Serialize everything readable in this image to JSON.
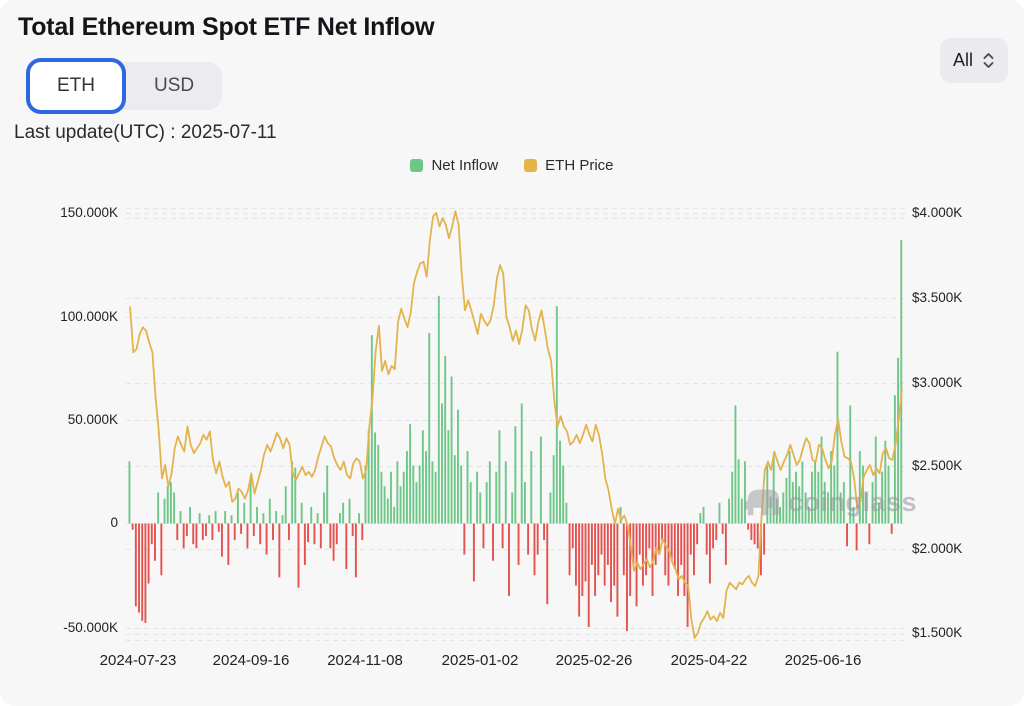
{
  "header": {
    "title": "Total Ethereum Spot ETF Net Inflow",
    "toggle": {
      "options": [
        "ETH",
        "USD"
      ],
      "selected": "ETH"
    },
    "range": {
      "value": "All"
    },
    "last_update": "Last update(UTC) : 2025-07-11"
  },
  "legend": [
    {
      "label": "Net Inflow",
      "color": "#6fc787"
    },
    {
      "label": "ETH Price",
      "color": "#e3b34c"
    }
  ],
  "watermark": {
    "text": "coinglass"
  },
  "chart_data": {
    "type": "bar+line",
    "title": "Total Ethereum Spot ETF Net Inflow",
    "x_start": "2024-07-23",
    "x_end": "2025-07-11",
    "x_tick_labels": [
      "2024-07-23",
      "2024-09-16",
      "2024-11-08",
      "2025-01-02",
      "2025-02-26",
      "2025-04-22",
      "2025-06-16"
    ],
    "left_axis": {
      "ticks": [
        "150.000K",
        "100.000K",
        "50.000K",
        "0",
        "-50.000K"
      ],
      "min_keth": -50,
      "max_keth": 150
    },
    "right_axis": {
      "ticks": [
        "$4.000K",
        "$3.500K",
        "$3.000K",
        "$2.500K",
        "$2.000K",
        "$1.500K"
      ],
      "min_kusd": 1.5,
      "max_kusd": 4.0
    },
    "grid": "dashed",
    "legend_position": "top",
    "series": [
      {
        "name": "Net Inflow",
        "type": "bar",
        "unit": "thousand ETH",
        "color_positive": "#6fc787",
        "color_negative": "#e4524f",
        "values": [
          30,
          -3,
          -40,
          -43,
          -47,
          -48,
          -29,
          -10,
          -18,
          15,
          -25,
          12,
          18,
          20,
          15,
          -8,
          6,
          -12,
          -6,
          8,
          -10,
          -12,
          5,
          -8,
          -6,
          4,
          -8,
          6,
          -4,
          -16,
          6,
          -20,
          4,
          -8,
          15,
          -5,
          10,
          -12,
          22,
          -6,
          8,
          -10,
          5,
          -15,
          12,
          -8,
          6,
          -26,
          4,
          18,
          -8,
          30,
          27,
          -31,
          10,
          -20,
          -9,
          8,
          -10,
          5,
          -12,
          15,
          28,
          -12,
          -18,
          -10,
          5,
          10,
          -22,
          12,
          -6,
          -26,
          5,
          -8,
          28,
          45,
          91,
          44,
          38,
          25,
          18,
          12,
          25,
          8,
          30,
          18,
          25,
          35,
          48,
          28,
          20,
          28,
          45,
          35,
          92,
          30,
          25,
          110,
          58,
          81,
          45,
          71,
          33,
          55,
          28,
          -15,
          35,
          20,
          -28,
          25,
          15,
          -12,
          20,
          30,
          -18,
          25,
          45,
          -12,
          30,
          -35,
          15,
          47,
          -20,
          58,
          20,
          -15,
          35,
          -25,
          -15,
          42,
          -8,
          -39,
          15,
          33,
          105,
          40,
          28,
          10,
          -25,
          -12,
          -30,
          -45,
          -35,
          -28,
          -50,
          -20,
          -35,
          -25,
          -15,
          -30,
          -20,
          -38,
          -30,
          -45,
          8,
          -25,
          -52,
          -35,
          -20,
          -40,
          -15,
          -30,
          -25,
          -12,
          -35,
          -20,
          -15,
          -8,
          -25,
          -30,
          -18,
          -22,
          -35,
          -20,
          -35,
          -50,
          -15,
          -25,
          -10,
          5,
          8,
          -15,
          -29,
          -12,
          -8,
          10,
          -5,
          -20,
          12,
          25,
          57,
          31,
          12,
          30,
          -3,
          -8,
          -10,
          -12,
          -25,
          -15,
          28,
          13,
          33,
          12,
          8,
          15,
          22,
          35,
          20,
          25,
          18,
          30,
          15,
          8,
          25,
          30,
          25,
          42,
          20,
          15,
          35,
          28,
          83,
          15,
          20,
          -11,
          57,
          8,
          -13,
          35,
          28,
          15,
          -10,
          20,
          42,
          10,
          25,
          40,
          28,
          -5,
          62,
          80,
          137
        ]
      },
      {
        "name": "ETH Price",
        "type": "line",
        "unit": "thousand USD",
        "color": "#e3b34c",
        "values": [
          3.44,
          3.17,
          3.19,
          3.28,
          3.32,
          3.3,
          3.23,
          3.17,
          2.9,
          2.7,
          2.42,
          2.5,
          2.37,
          2.45,
          2.6,
          2.67,
          2.62,
          2.58,
          2.73,
          2.62,
          2.57,
          2.6,
          2.63,
          2.68,
          2.65,
          2.7,
          2.53,
          2.45,
          2.52,
          2.43,
          2.37,
          2.4,
          2.28,
          2.3,
          2.36,
          2.34,
          2.3,
          2.35,
          2.45,
          2.33,
          2.4,
          2.47,
          2.56,
          2.62,
          2.58,
          2.63,
          2.69,
          2.66,
          2.6,
          2.66,
          2.62,
          2.45,
          2.41,
          2.45,
          2.49,
          2.44,
          2.46,
          2.43,
          2.47,
          2.55,
          2.61,
          2.67,
          2.63,
          2.61,
          2.54,
          2.5,
          2.47,
          2.52,
          2.44,
          2.42,
          2.51,
          2.54,
          2.52,
          2.42,
          2.47,
          2.72,
          2.9,
          3.18,
          3.33,
          3.06,
          3.12,
          3.04,
          3.09,
          3.07,
          3.35,
          3.43,
          3.37,
          3.32,
          3.41,
          3.58,
          3.65,
          3.7,
          3.71,
          3.62,
          3.84,
          3.98,
          4.0,
          3.92,
          3.97,
          3.93,
          3.85,
          3.92,
          4.01,
          3.93,
          3.63,
          3.42,
          3.48,
          3.42,
          3.35,
          3.28,
          3.4,
          3.36,
          3.33,
          3.36,
          3.45,
          3.61,
          3.69,
          3.64,
          3.38,
          3.32,
          3.24,
          3.3,
          3.22,
          3.31,
          3.45,
          3.42,
          3.31,
          3.24,
          3.35,
          3.42,
          3.31,
          3.19,
          3.12,
          2.88,
          2.73,
          2.79,
          2.73,
          2.7,
          2.62,
          2.64,
          2.68,
          2.63,
          2.68,
          2.74,
          2.68,
          2.64,
          2.74,
          2.68,
          2.57,
          2.42,
          2.35,
          2.24,
          2.15,
          2.24,
          2.17,
          2.2,
          2.14,
          2.02,
          1.87,
          1.92,
          1.88,
          1.91,
          1.94,
          1.89,
          1.93,
          2.01,
          1.97,
          2.06,
          2.02,
          1.99,
          1.92,
          1.88,
          1.82,
          1.84,
          1.8,
          1.78,
          1.58,
          1.47,
          1.5,
          1.56,
          1.59,
          1.63,
          1.58,
          1.6,
          1.57,
          1.62,
          1.59,
          1.75,
          1.8,
          1.78,
          1.76,
          1.8,
          1.79,
          1.82,
          1.84,
          1.8,
          1.78,
          1.84,
          2.2,
          2.47,
          2.52,
          2.47,
          2.58,
          2.52,
          2.47,
          2.52,
          2.56,
          2.62,
          2.56,
          2.5,
          2.53,
          2.6,
          2.66,
          2.63,
          2.53,
          2.52,
          2.62,
          2.6,
          2.53,
          2.48,
          2.52,
          2.68,
          2.77,
          2.64,
          2.55,
          2.54,
          2.52,
          2.42,
          2.24,
          2.28,
          2.43,
          2.47,
          2.5,
          2.44,
          2.48,
          2.45,
          2.57,
          2.6,
          2.54,
          2.53,
          2.62,
          2.77,
          2.95
        ]
      }
    ]
  }
}
